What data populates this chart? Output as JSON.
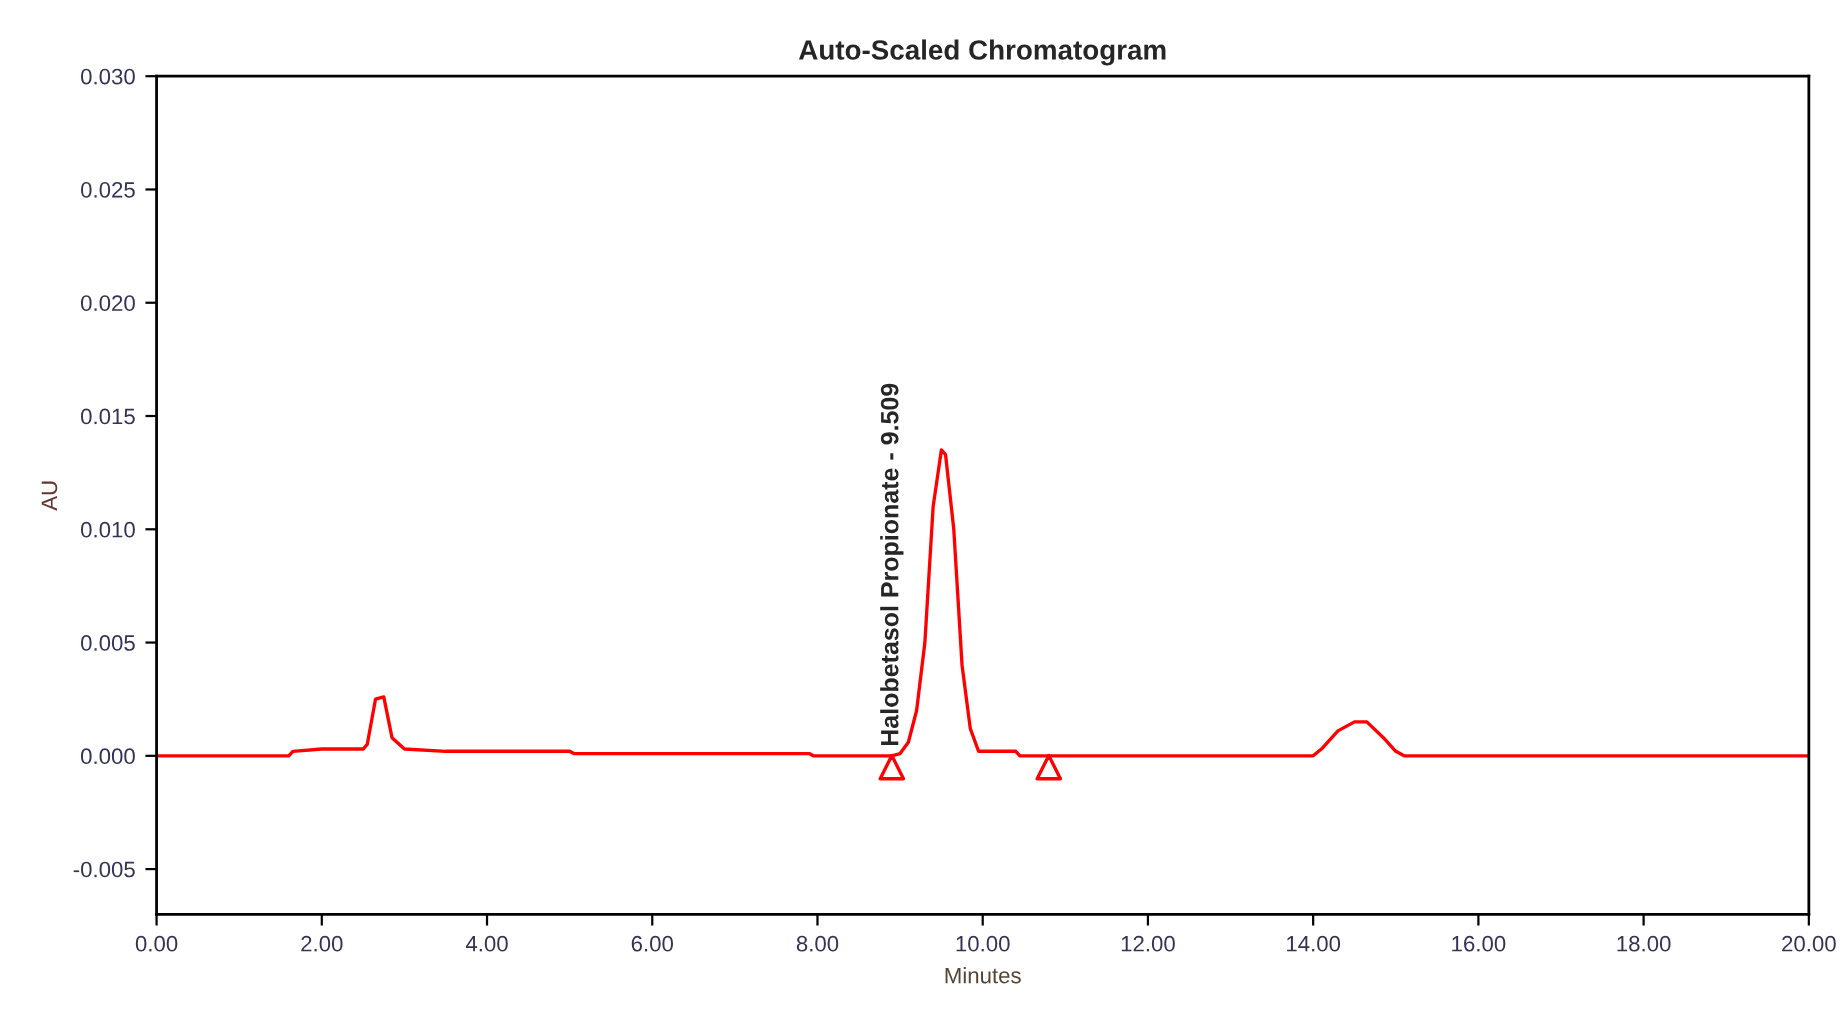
{
  "chart_data": {
    "type": "line",
    "title": "Auto-Scaled Chromatogram",
    "xlabel": "Minutes",
    "ylabel": "AU",
    "xlim": [
      0,
      20
    ],
    "xticks": [
      {
        "value": 0,
        "label": "0.00"
      },
      {
        "value": 2,
        "label": "2.00"
      },
      {
        "value": 4,
        "label": "4.00"
      },
      {
        "value": 6,
        "label": "6.00"
      },
      {
        "value": 8,
        "label": "8.00"
      },
      {
        "value": 10,
        "label": "10.00"
      },
      {
        "value": 12,
        "label": "12.00"
      },
      {
        "value": 14,
        "label": "14.00"
      },
      {
        "value": 16,
        "label": "16.00"
      },
      {
        "value": 18,
        "label": "18.00"
      },
      {
        "value": 20,
        "label": "20.00"
      }
    ],
    "ylim": [
      -0.007,
      0.03
    ],
    "yticks": [
      {
        "value": -0.005,
        "label": "-0.005"
      },
      {
        "value": 0,
        "label": "0.000"
      },
      {
        "value": 0.005,
        "label": "0.005"
      },
      {
        "value": 0.01,
        "label": "0.010"
      },
      {
        "value": 0.015,
        "label": "0.015"
      },
      {
        "value": 0.02,
        "label": "0.020"
      },
      {
        "value": 0.025,
        "label": "0.025"
      },
      {
        "value": 0.03,
        "label": "0.030"
      }
    ],
    "grid": false,
    "legend": false,
    "series": [
      {
        "color": "#ff0000",
        "marker": "none",
        "x": [
          0,
          1.6,
          1.65,
          2.0,
          2.5,
          2.55,
          2.65,
          2.75,
          2.85,
          3.0,
          3.5,
          5.0,
          5.05,
          7.9,
          7.95,
          8.9,
          9.0,
          9.1,
          9.2,
          9.3,
          9.4,
          9.5,
          9.55,
          9.65,
          9.75,
          9.85,
          9.95,
          10.4,
          10.45,
          14.0,
          14.1,
          14.3,
          14.5,
          14.65,
          14.85,
          15.0,
          15.1,
          20
        ],
        "values": [
          0,
          0,
          0.0002,
          0.0003,
          0.0003,
          0.0005,
          0.0025,
          0.0026,
          0.0008,
          0.0003,
          0.0002,
          0.0002,
          0.0001,
          0.0001,
          0,
          0,
          0.0001,
          0.0006,
          0.002,
          0.005,
          0.011,
          0.0135,
          0.0133,
          0.01,
          0.004,
          0.0012,
          0.0002,
          0.0002,
          0,
          0,
          0.0003,
          0.0011,
          0.0015,
          0.0015,
          0.0008,
          0.0002,
          0,
          0
        ]
      },
      {
        "type": "scatter",
        "color": "#ff0000",
        "marker": "triangle",
        "x": [
          8.9,
          10.8
        ],
        "values": [
          -0.0005,
          -0.0005
        ]
      }
    ],
    "annotations": [
      "Halobetasol Propionate - 9.509"
    ]
  }
}
